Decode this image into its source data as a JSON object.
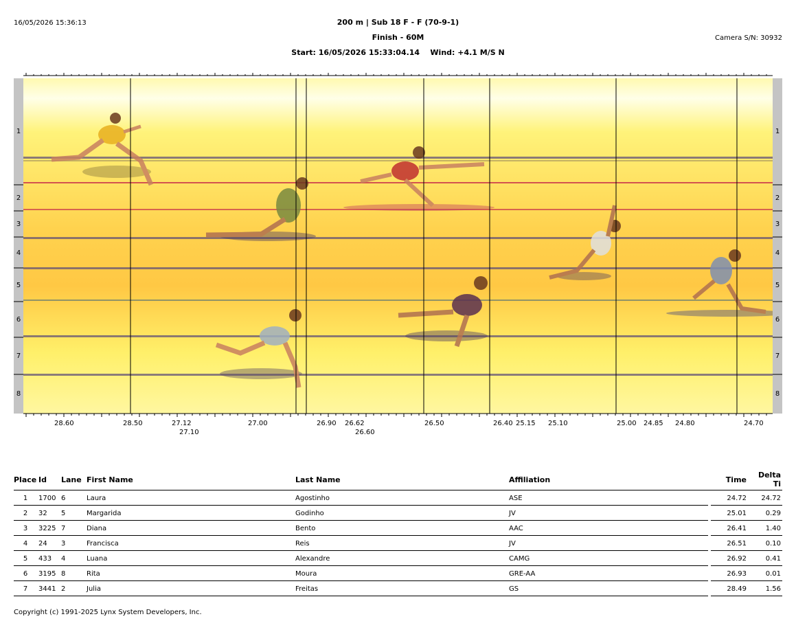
{
  "header": {
    "datetime": "16/05/2026 15:36:13",
    "event": "200 m | Sub 18 F - F (70-9-1)",
    "finish": "Finish - 60M",
    "start": "Start: 16/05/2026 15:33:04.14",
    "wind": "Wind: +4.1 M/S N",
    "camera": "Camera S/N: 30932"
  },
  "photo_finish": {
    "lanes": [
      "1",
      "2",
      "3",
      "4",
      "5",
      "6",
      "7",
      "8"
    ],
    "time_labels": [
      "28.60",
      "28.50",
      "27.12",
      "27.10",
      "27.00",
      "26.90",
      "26.62",
      "26.60",
      "26.50",
      "26.40",
      "25.15",
      "25.10",
      "25.00",
      "24.85",
      "24.80",
      "24.70"
    ],
    "colors": {
      "background_top": "#fff7a8",
      "background_mid": "#ffcf4a",
      "lane_line": "#5a4a78",
      "lane_line_red": "#c8304a",
      "bar": "#c4c4c4"
    }
  },
  "results": {
    "columns": {
      "place": "Place",
      "id": "Id",
      "lane": "Lane",
      "first": "First Name",
      "last": "Last Name",
      "affiliation": "Affiliation",
      "time": "Time",
      "delta": "Delta Ti"
    },
    "rows": [
      {
        "place": "1",
        "id": "1700",
        "lane": "6",
        "first": "Laura",
        "last": "Agostinho",
        "affiliation": "ASE",
        "time": "24.72",
        "delta": "24.72"
      },
      {
        "place": "2",
        "id": "32",
        "lane": "5",
        "first": "Margarida",
        "last": "Godinho",
        "affiliation": "JV",
        "time": "25.01",
        "delta": "0.29"
      },
      {
        "place": "3",
        "id": "3225",
        "lane": "7",
        "first": "Diana",
        "last": "Bento",
        "affiliation": "AAC",
        "time": "26.41",
        "delta": "1.40"
      },
      {
        "place": "4",
        "id": "24",
        "lane": "3",
        "first": "Francisca",
        "last": "Reis",
        "affiliation": "JV",
        "time": "26.51",
        "delta": "0.10"
      },
      {
        "place": "5",
        "id": "433",
        "lane": "4",
        "first": "Luana",
        "last": "Alexandre",
        "affiliation": "CAMG",
        "time": "26.92",
        "delta": "0.41"
      },
      {
        "place": "6",
        "id": "3195",
        "lane": "8",
        "first": "Rita",
        "last": "Moura",
        "affiliation": "GRE-AA",
        "time": "26.93",
        "delta": "0.01"
      },
      {
        "place": "7",
        "id": "3441",
        "lane": "2",
        "first": "Julia",
        "last": "Freitas",
        "affiliation": "GS",
        "time": "28.49",
        "delta": "1.56"
      }
    ]
  },
  "footer": {
    "copyright": "Copyright (c) 1991-2025 Lynx System Developers, Inc."
  }
}
